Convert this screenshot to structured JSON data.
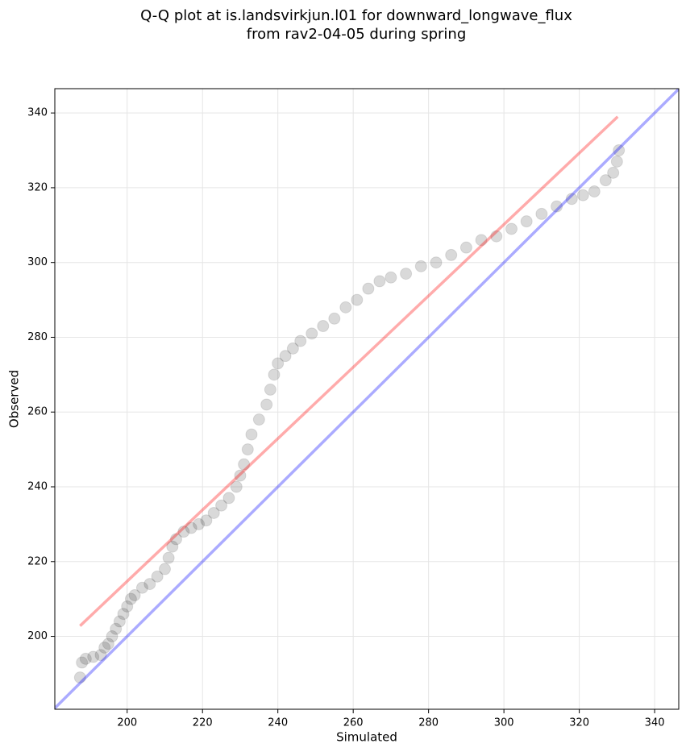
{
  "chart_data": {
    "type": "scatter",
    "title": [
      "Q-Q plot at is.landsvirkjun.l01 for downward_longwave_flux",
      "from rav2-04-05 during spring"
    ],
    "xlabel": "Simulated",
    "ylabel": "Observed",
    "xlim": [
      180.8,
      346.4
    ],
    "ylim": [
      180.5,
      346.5
    ],
    "xticks": [
      200,
      220,
      240,
      260,
      280,
      300,
      320,
      340
    ],
    "yticks": [
      200,
      220,
      240,
      260,
      280,
      300,
      320,
      340
    ],
    "grid": true,
    "series": [
      {
        "color": "#000000",
        "x": [
          187.5,
          188,
          189,
          191,
          193,
          194,
          195,
          196,
          197,
          198,
          199,
          200,
          201,
          202,
          204,
          206,
          208,
          210,
          211,
          212,
          213,
          215,
          217,
          219,
          221,
          223,
          225,
          227,
          229,
          230,
          231,
          232,
          233,
          235,
          237,
          238,
          239,
          240,
          242,
          244,
          246,
          249,
          252,
          255,
          258,
          261,
          264,
          267,
          270,
          274,
          278,
          282,
          286,
          290,
          294,
          298,
          302,
          306,
          310,
          314,
          318,
          321,
          324,
          327,
          329,
          330,
          330.5
        ],
        "values": [
          189,
          193,
          194,
          194.5,
          195,
          197,
          198,
          200,
          202,
          204,
          206,
          208,
          210,
          211,
          213,
          214,
          216,
          218,
          221,
          224,
          226,
          228,
          229,
          230,
          231,
          233,
          235,
          237,
          240,
          243,
          246,
          250,
          254,
          258,
          262,
          266,
          270,
          273,
          275,
          277,
          279,
          281,
          283,
          285,
          288,
          290,
          293,
          295,
          296,
          297,
          299,
          300,
          302,
          304,
          306,
          307,
          309,
          311,
          313,
          315,
          317,
          318,
          319,
          322,
          324,
          327,
          330
        ]
      }
    ],
    "lines": [
      {
        "color": "#ff0000",
        "x": [
          187.5,
          330.2
        ],
        "values": [
          202.8,
          339
        ]
      },
      {
        "color": "#0000ff",
        "x": [
          180.5,
          346.5
        ],
        "values": [
          180.5,
          346.5
        ]
      }
    ]
  }
}
